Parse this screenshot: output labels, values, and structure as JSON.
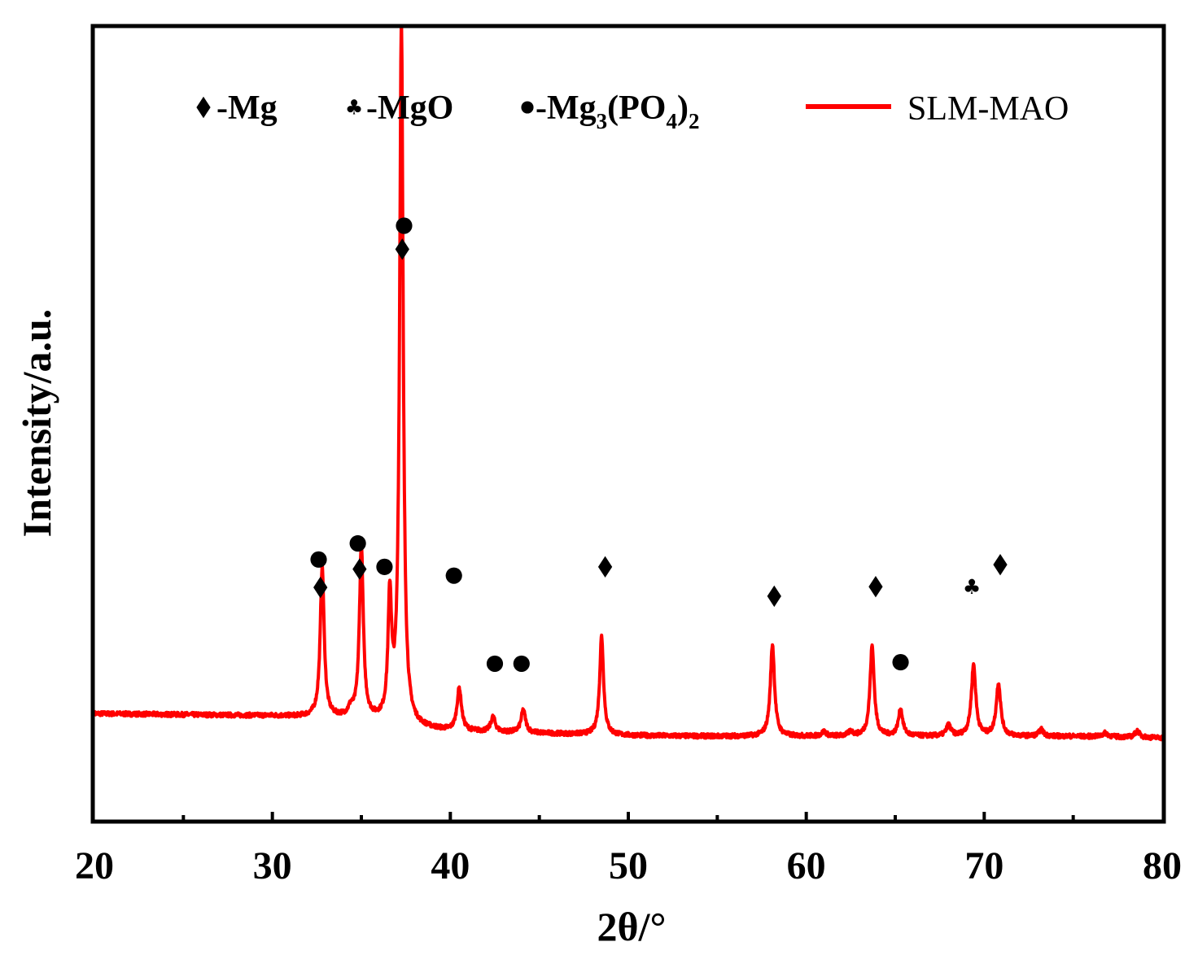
{
  "chart_data": {
    "type": "line",
    "xlabel": "2θ/°",
    "ylabel": "Intensity/a.u.",
    "xlim": [
      20,
      80
    ],
    "x_ticks": [
      "20",
      "30",
      "40",
      "50",
      "60",
      "70",
      "80"
    ],
    "y_ticks_shown": false,
    "grid": false,
    "legend_placement": "top",
    "phase_legend": [
      {
        "symbol": "diamond",
        "label": "-Mg",
        "phase": "Mg"
      },
      {
        "symbol": "club",
        "label": "-MgO",
        "phase": "MgO"
      },
      {
        "symbol": "circle",
        "label_prefix": "-Mg",
        "sub1": "3",
        "mid": "(PO",
        "sub2": "4",
        "close": ")",
        "sub3": "2",
        "phase": "Mg3(PO4)2"
      }
    ],
    "series": [
      {
        "name": "SLM-MAO",
        "color": "#ff0000",
        "peaks": [
          {
            "x": 32.8,
            "height": 0.205,
            "width": 0.13
          },
          {
            "x": 34.4,
            "height": 0.01,
            "width": 0.15
          },
          {
            "x": 35.0,
            "height": 0.233,
            "width": 0.13
          },
          {
            "x": 36.6,
            "height": 0.165,
            "width": 0.12
          },
          {
            "x": 37.25,
            "height": 0.955,
            "width": 0.12
          },
          {
            "x": 40.5,
            "height": 0.058,
            "width": 0.15
          },
          {
            "x": 42.4,
            "height": 0.02,
            "width": 0.15
          },
          {
            "x": 44.1,
            "height": 0.031,
            "width": 0.15
          },
          {
            "x": 48.5,
            "height": 0.135,
            "width": 0.13
          },
          {
            "x": 58.1,
            "height": 0.125,
            "width": 0.14
          },
          {
            "x": 61.0,
            "height": 0.006,
            "width": 0.15
          },
          {
            "x": 62.5,
            "height": 0.006,
            "width": 0.15
          },
          {
            "x": 63.7,
            "height": 0.123,
            "width": 0.14
          },
          {
            "x": 65.3,
            "height": 0.036,
            "width": 0.15
          },
          {
            "x": 68.0,
            "height": 0.015,
            "width": 0.15
          },
          {
            "x": 69.4,
            "height": 0.097,
            "width": 0.15
          },
          {
            "x": 70.8,
            "height": 0.072,
            "width": 0.15
          },
          {
            "x": 73.2,
            "height": 0.009,
            "width": 0.15
          },
          {
            "x": 76.8,
            "height": 0.005,
            "width": 0.2
          },
          {
            "x": 78.6,
            "height": 0.009,
            "width": 0.15
          }
        ],
        "baseline": [
          {
            "x": 20,
            "y": 0.065
          },
          {
            "x": 30,
            "y": 0.062
          },
          {
            "x": 35,
            "y": 0.058
          },
          {
            "x": 37.5,
            "y": 0.046
          },
          {
            "x": 40,
            "y": 0.041
          },
          {
            "x": 45,
            "y": 0.038
          },
          {
            "x": 50,
            "y": 0.035
          },
          {
            "x": 55,
            "y": 0.034
          },
          {
            "x": 60,
            "y": 0.034
          },
          {
            "x": 65,
            "y": 0.034
          },
          {
            "x": 70,
            "y": 0.034
          },
          {
            "x": 75,
            "y": 0.034
          },
          {
            "x": 80,
            "y": 0.032
          }
        ],
        "ylim": [
          -0.08,
          1.0
        ]
      }
    ],
    "annotations": [
      {
        "symbol": "circle",
        "x": 32.6,
        "y": 0.275
      },
      {
        "symbol": "diamond",
        "x": 32.7,
        "y": 0.237
      },
      {
        "symbol": "circle",
        "x": 34.8,
        "y": 0.297
      },
      {
        "symbol": "diamond",
        "x": 34.9,
        "y": 0.262
      },
      {
        "symbol": "circle",
        "x": 36.3,
        "y": 0.265
      },
      {
        "symbol": "circle",
        "x": 37.4,
        "y": 0.73
      },
      {
        "symbol": "diamond",
        "x": 37.3,
        "y": 0.698
      },
      {
        "symbol": "circle",
        "x": 40.2,
        "y": 0.253
      },
      {
        "symbol": "circle",
        "x": 42.5,
        "y": 0.133
      },
      {
        "symbol": "circle",
        "x": 44.0,
        "y": 0.133
      },
      {
        "symbol": "diamond",
        "x": 48.7,
        "y": 0.265
      },
      {
        "symbol": "diamond",
        "x": 58.2,
        "y": 0.225
      },
      {
        "symbol": "diamond",
        "x": 63.9,
        "y": 0.238
      },
      {
        "symbol": "circle",
        "x": 65.3,
        "y": 0.135
      },
      {
        "symbol": "club",
        "x": 69.3,
        "y": 0.238
      },
      {
        "symbol": "diamond",
        "x": 70.9,
        "y": 0.268
      }
    ]
  }
}
